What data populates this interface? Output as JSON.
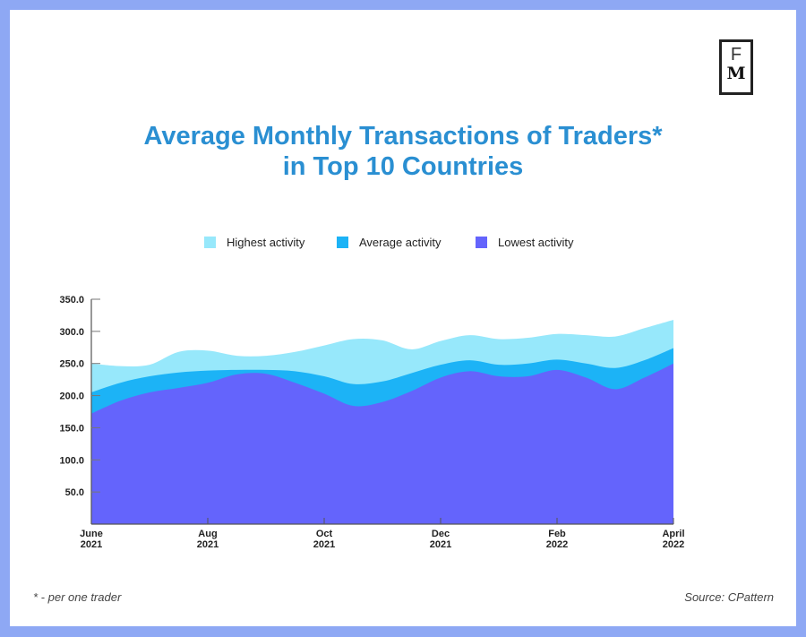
{
  "logo": {
    "top": "F",
    "bottom": "M"
  },
  "colors": {
    "highest": "#97e8fb",
    "average": "#1cb3f6",
    "lowest": "#6464fc",
    "title": "#2a8fd2"
  },
  "footnote": "* - per one trader",
  "source": "Source: CPattern",
  "chart_data": {
    "type": "area",
    "title": "Average Monthly Transactions of Traders*",
    "subtitle": "in Top 10 Countries",
    "xlabel": "",
    "ylabel": "",
    "ylim": [
      0,
      350
    ],
    "yticks": [
      "50.0",
      "100.0",
      "150.0",
      "200.0",
      "250.0",
      "300.0",
      "350.0"
    ],
    "ytick_values": [
      50,
      100,
      150,
      200,
      250,
      300,
      350
    ],
    "xticks": [
      {
        "month": "June",
        "year": "2021",
        "pos": 0
      },
      {
        "month": "Aug",
        "year": "2021",
        "pos": 2
      },
      {
        "month": "Oct",
        "year": "2021",
        "pos": 4
      },
      {
        "month": "Dec",
        "year": "2021",
        "pos": 6
      },
      {
        "month": "Feb",
        "year": "2022",
        "pos": 8
      },
      {
        "month": "April",
        "year": "2022",
        "pos": 10
      }
    ],
    "x": [
      0,
      0.5,
      1,
      1.5,
      2,
      2.5,
      3,
      3.5,
      4,
      4.5,
      5,
      5.5,
      6,
      6.5,
      7,
      7.5,
      8,
      8.5,
      9,
      9.5,
      10
    ],
    "legend_position": "top-center",
    "grid": false,
    "series": [
      {
        "name": "Highest activity",
        "values": [
          250,
          246,
          248,
          268,
          270,
          262,
          262,
          268,
          278,
          288,
          286,
          272,
          285,
          294,
          288,
          290,
          296,
          294,
          292,
          305,
          318
        ]
      },
      {
        "name": "Average activity",
        "values": [
          205,
          220,
          230,
          236,
          239,
          240,
          240,
          238,
          230,
          218,
          222,
          235,
          248,
          255,
          248,
          250,
          256,
          250,
          243,
          255,
          274
        ]
      },
      {
        "name": "Lowest activity",
        "values": [
          172,
          192,
          205,
          212,
          220,
          233,
          234,
          220,
          203,
          184,
          190,
          207,
          228,
          238,
          230,
          230,
          240,
          228,
          210,
          228,
          250
        ]
      }
    ]
  }
}
